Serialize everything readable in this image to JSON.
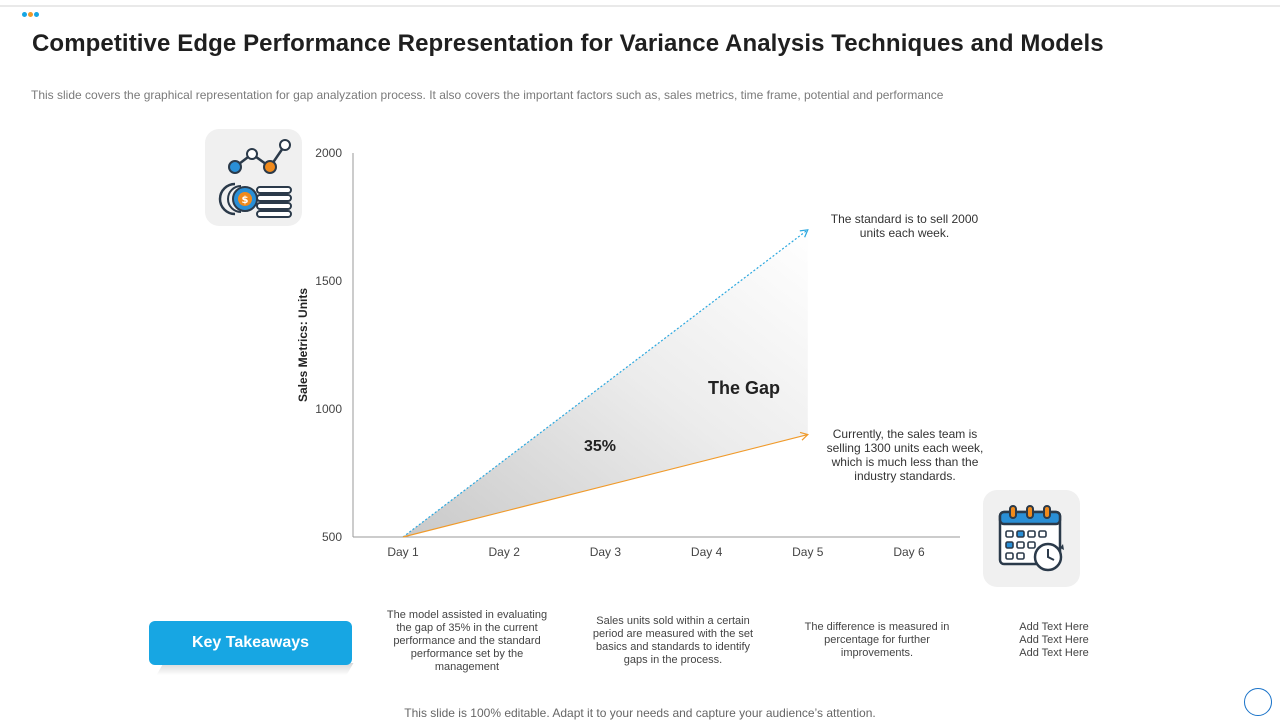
{
  "slide": {
    "title": "Competitive Edge Performance Representation for Variance Analysis Techniques and Models",
    "subtitle": "This slide covers the graphical representation for gap analyzation process. It also covers the important factors such as, sales metrics, time frame, potential and performance",
    "footer": "This slide is 100% editable. Adapt it to your needs and capture your audience’s attention."
  },
  "colors": {
    "accent": "#17a6e3",
    "standard_line": "#2aa7df",
    "current_line": "#f09a2a",
    "icon_blue": "#2a8fd6",
    "icon_orange": "#f08a1c",
    "icon_dark": "#2b3a4a"
  },
  "icons": {
    "top_left": "sales-coins-line-chart-icon",
    "bottom_right": "calendar-clock-icon"
  },
  "chart_data": {
    "type": "line",
    "title": "",
    "xlabel": "",
    "ylabel": "Sales Metrics: Units",
    "categories": [
      "Day 1",
      "Day 2",
      "Day 3",
      "Day 4",
      "Day 5",
      "Day 6"
    ],
    "ylim": [
      500,
      2000
    ],
    "yticks": [
      500,
      1000,
      1500,
      2000
    ],
    "series": [
      {
        "x": [
          "Day 1",
          "Day 5"
        ],
        "values": [
          500,
          1700
        ],
        "style": "dotted-arrow",
        "color": "#2aa7df"
      },
      {
        "x": [
          "Day 1",
          "Day 5"
        ],
        "values": [
          500,
          900
        ],
        "style": "solid-arrow",
        "color": "#f09a2a"
      }
    ],
    "gap_label": "The Gap",
    "gap_percent": "35%",
    "annotations": {
      "standard": "The standard is to sell 2000 units each week.",
      "current": "Currently, the sales team is selling 1300 units each week, which is much less than the industry standards."
    },
    "grid": false
  },
  "takeaways": {
    "button_label": "Key Takeaways",
    "items": [
      "The model assisted in evaluating the gap of 35% in the current performance and the standard performance set by the management",
      "Sales units sold within a certain period are measured with the set basics and standards to identify gaps in the process.",
      "The difference is measured in percentage for further improvements.",
      "Add Text Here\nAdd Text Here\nAdd Text Here"
    ]
  }
}
